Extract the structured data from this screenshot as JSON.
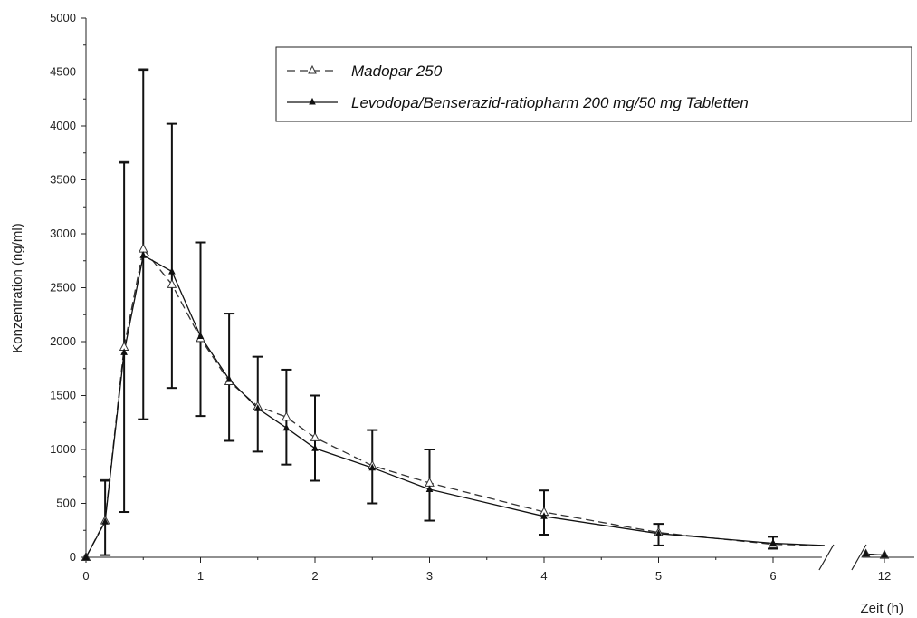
{
  "chart_data": {
    "type": "line",
    "xlabel": "Zeit (h)",
    "ylabel": "Konzentration (ng/ml)",
    "ylim": [
      0,
      5000
    ],
    "xlim": [
      0,
      12
    ],
    "x_axis_break": [
      6.45,
      11.5
    ],
    "x_ticks": [
      0,
      1,
      2,
      3,
      4,
      5,
      6,
      12
    ],
    "x_tick_labels": [
      "0",
      "1",
      "2",
      "3",
      "4",
      "5",
      "6",
      "12"
    ],
    "y_ticks": [
      0,
      500,
      1000,
      1500,
      2000,
      2500,
      3000,
      3500,
      4000,
      4500,
      5000
    ],
    "y_tick_labels": [
      "0",
      "500",
      "1000",
      "1500",
      "2000",
      "2500",
      "3000",
      "3500",
      "4000",
      "4500",
      "5000"
    ],
    "grid": false,
    "legend_position": "top-right",
    "series": [
      {
        "name": "Madopar 250",
        "line_style": "dashed",
        "marker": "open-triangle",
        "color": "#333333",
        "x": [
          0,
          0.167,
          0.333,
          0.5,
          0.75,
          1,
          1.25,
          1.5,
          1.75,
          2,
          2.5,
          3,
          4,
          5,
          6,
          6.45,
          11.7,
          12
        ],
        "y": [
          0,
          340,
          1950,
          2860,
          2530,
          2030,
          1630,
          1400,
          1300,
          1110,
          850,
          690,
          420,
          230,
          120,
          110,
          30,
          20
        ],
        "error_upper": [
          null,
          720,
          3670,
          4530,
          4020,
          2920,
          2260,
          1860,
          1740,
          1500,
          1180,
          1000,
          620,
          310,
          190,
          null,
          null,
          null
        ]
      },
      {
        "name": "Levodopa/Benserazid-ratiopharm 200 mg/50 mg Tabletten",
        "line_style": "solid",
        "marker": "filled-triangle",
        "color": "#111111",
        "x": [
          0,
          0.167,
          0.333,
          0.5,
          0.75,
          1,
          1.25,
          1.5,
          1.75,
          2,
          2.5,
          3,
          4,
          5,
          6,
          6.45,
          11.7,
          12
        ],
        "y": [
          0,
          330,
          1900,
          2800,
          2650,
          2050,
          1650,
          1380,
          1200,
          1010,
          830,
          630,
          380,
          220,
          130,
          110,
          30,
          20
        ],
        "error_lower": [
          null,
          20,
          420,
          1280,
          1570,
          1310,
          1080,
          980,
          860,
          710,
          500,
          340,
          210,
          110,
          80,
          null,
          null,
          null
        ],
        "error_upper": [
          null,
          710,
          3660,
          4520,
          4020,
          2920,
          2260,
          1860,
          1740,
          1500,
          1180,
          1000,
          620,
          310,
          190,
          null,
          null,
          null
        ]
      }
    ]
  }
}
